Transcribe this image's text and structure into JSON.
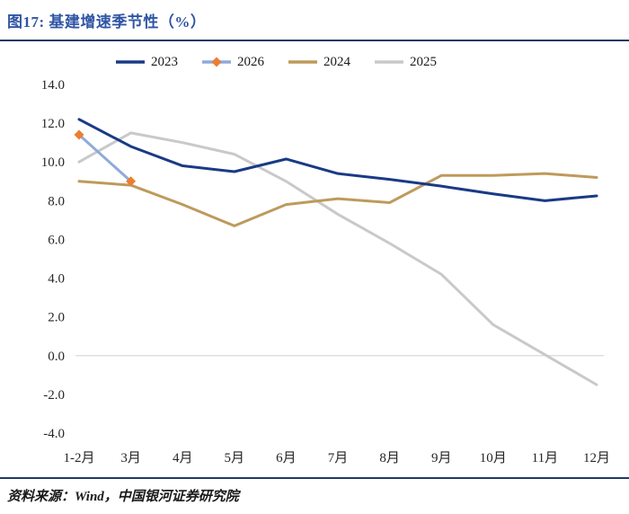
{
  "header": {
    "title": "图17: 基建增速季节性（%）"
  },
  "footer": {
    "source": "资料来源：Wind，中国银河证券研究院"
  },
  "chart_data": {
    "type": "line",
    "title": "图17: 基建增速季节性（%）",
    "categories": [
      "1-2月",
      "3月",
      "4月",
      "5月",
      "6月",
      "7月",
      "8月",
      "9月",
      "10月",
      "11月",
      "12月"
    ],
    "series": [
      {
        "name": "2023",
        "color": "#1A3A85",
        "values": [
          12.2,
          10.8,
          9.8,
          9.5,
          10.15,
          9.4,
          9.1,
          8.75,
          8.35,
          8.0,
          8.25
        ]
      },
      {
        "name": "2026",
        "color": "#8FAADC",
        "marker": "diamond",
        "marker_color": "#ED7D31",
        "values": [
          11.4,
          9.0,
          null,
          null,
          null,
          null,
          null,
          null,
          null,
          null,
          null
        ]
      },
      {
        "name": "2024",
        "color": "#BE9A5C",
        "values": [
          9.0,
          8.8,
          7.8,
          6.7,
          7.8,
          8.1,
          7.9,
          9.3,
          9.3,
          9.4,
          9.2
        ]
      },
      {
        "name": "2025",
        "color": "#C9C9C9",
        "values": [
          10.0,
          11.5,
          11.0,
          10.4,
          9.0,
          7.3,
          5.8,
          4.2,
          1.6,
          0.05,
          -1.5
        ]
      }
    ],
    "ylim": [
      -4,
      14
    ],
    "ytick_step": 2,
    "xlabel": "",
    "ylabel": "",
    "legend_position": "top",
    "grid": false,
    "zero_line": true,
    "draw_order": [
      3,
      2,
      0,
      1
    ],
    "zero_line_color": "#D9D9D9"
  }
}
